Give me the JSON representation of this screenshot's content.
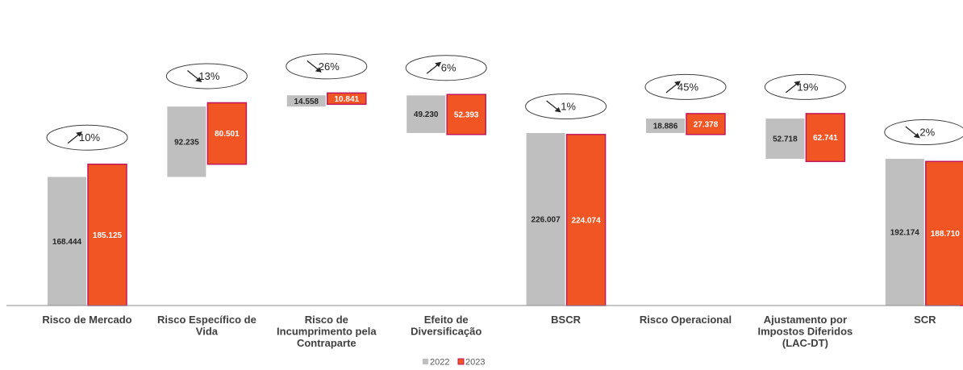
{
  "chart_data": {
    "type": "bar",
    "subtype": "waterfall",
    "categories": [
      "Risco de Mercado",
      "Risco Específico de Vida",
      "Risco de Incumprimento pela Contraparte",
      "Efeito de Diversificação",
      "BSCR",
      "Risco Operacional",
      "Ajustamento por Impostos Diferidos (LAC-DT)",
      "SCR"
    ],
    "category_lines": [
      [
        "Risco de Mercado"
      ],
      [
        "Risco Específico de",
        "Vida"
      ],
      [
        "Risco de",
        "Incumprimento pela",
        "Contraparte"
      ],
      [
        "Efeito de",
        "Diversificação"
      ],
      [
        "BSCR"
      ],
      [
        "Risco Operacional"
      ],
      [
        "Ajustamento por",
        "Impostos Diferidos",
        "(LAC-DT)"
      ],
      [
        "SCR"
      ]
    ],
    "series": [
      {
        "name": "2022",
        "color": "#bfbfbf",
        "values": [
          168444,
          92235,
          14558,
          49230,
          226007,
          18886,
          52718,
          192174
        ],
        "labels": [
          "168.444",
          "92.235",
          "14.558",
          "49.230",
          "226.007",
          "18.886",
          "52.718",
          "192.174"
        ]
      },
      {
        "name": "2023",
        "color": "#f05523",
        "border": "#c0185a",
        "values": [
          185125,
          80501,
          10841,
          52393,
          224074,
          27378,
          62741,
          188710
        ],
        "labels": [
          "185.125",
          "80.501",
          "10.841",
          "52.393",
          "224.074",
          "27.378",
          "62.741",
          "188.710"
        ]
      }
    ],
    "variation": [
      {
        "direction": "up",
        "label": "10%"
      },
      {
        "direction": "down",
        "label": "13%"
      },
      {
        "direction": "down",
        "label": "26%"
      },
      {
        "direction": "up",
        "label": "6%"
      },
      {
        "direction": "down",
        "label": "1%"
      },
      {
        "direction": "up",
        "label": "45%"
      },
      {
        "direction": "up",
        "label": "19%"
      },
      {
        "direction": "down",
        "label": "2%"
      }
    ],
    "legend": {
      "position": "bottom-center",
      "items": [
        "2022",
        "2023"
      ]
    },
    "grid": false,
    "y_axis_visible": false
  }
}
